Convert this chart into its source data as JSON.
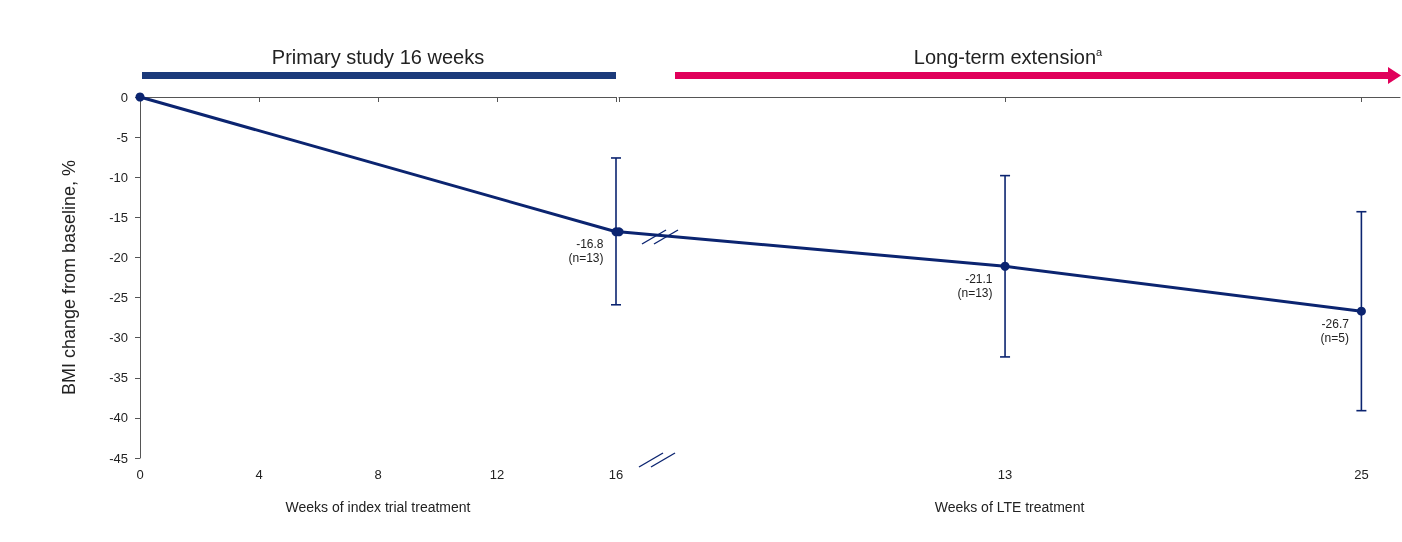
{
  "chart_data": [
    {
      "type": "line",
      "x": [
        0,
        16
      ],
      "xlabel": "Weeks of index trial treatment",
      "ylabel": "BMI change from baseline, %",
      "xlim": [
        0,
        16
      ],
      "xticks": [
        0,
        4,
        8,
        12,
        16
      ],
      "ylim": [
        -45,
        0
      ],
      "yticks": [
        -45,
        -40,
        -35,
        -30,
        -25,
        -20,
        -15,
        -10,
        -5,
        0
      ],
      "marker": "circle",
      "line_style": "solid",
      "grid": false,
      "series": [
        {
          "color": "#0b2470",
          "values": [
            0,
            -16.8
          ],
          "errors": [
            null,
            [
              -25.9,
              -7.6
            ]
          ],
          "value_labels": [
            null,
            "-16.8\n(n=13)"
          ]
        }
      ],
      "annotations": [
        "Primary study 16 weeks"
      ]
    },
    {
      "type": "line",
      "x": [
        0,
        13,
        25
      ],
      "xlabel": "Weeks of LTE treatment",
      "xlim": [
        0,
        26.3
      ],
      "xticks": [
        {
          "value": 0,
          "label": null
        },
        13,
        25
      ],
      "ylim": [
        -45,
        0
      ],
      "tick_labels": "x",
      "marker": "circle",
      "line_style": "solid",
      "grid": false,
      "series": [
        {
          "color": "#0b2470",
          "values": [
            -16.8,
            -21.1,
            -26.7
          ],
          "errors": [
            null,
            [
              -32.4,
              -9.8
            ],
            [
              -39.1,
              -14.3
            ]
          ],
          "value_labels": [
            null,
            "-21.1\n(n=13)",
            "-26.7\n(n=5)"
          ]
        }
      ],
      "annotations": [
        "Long-term extension$^{a}$"
      ]
    }
  ]
}
